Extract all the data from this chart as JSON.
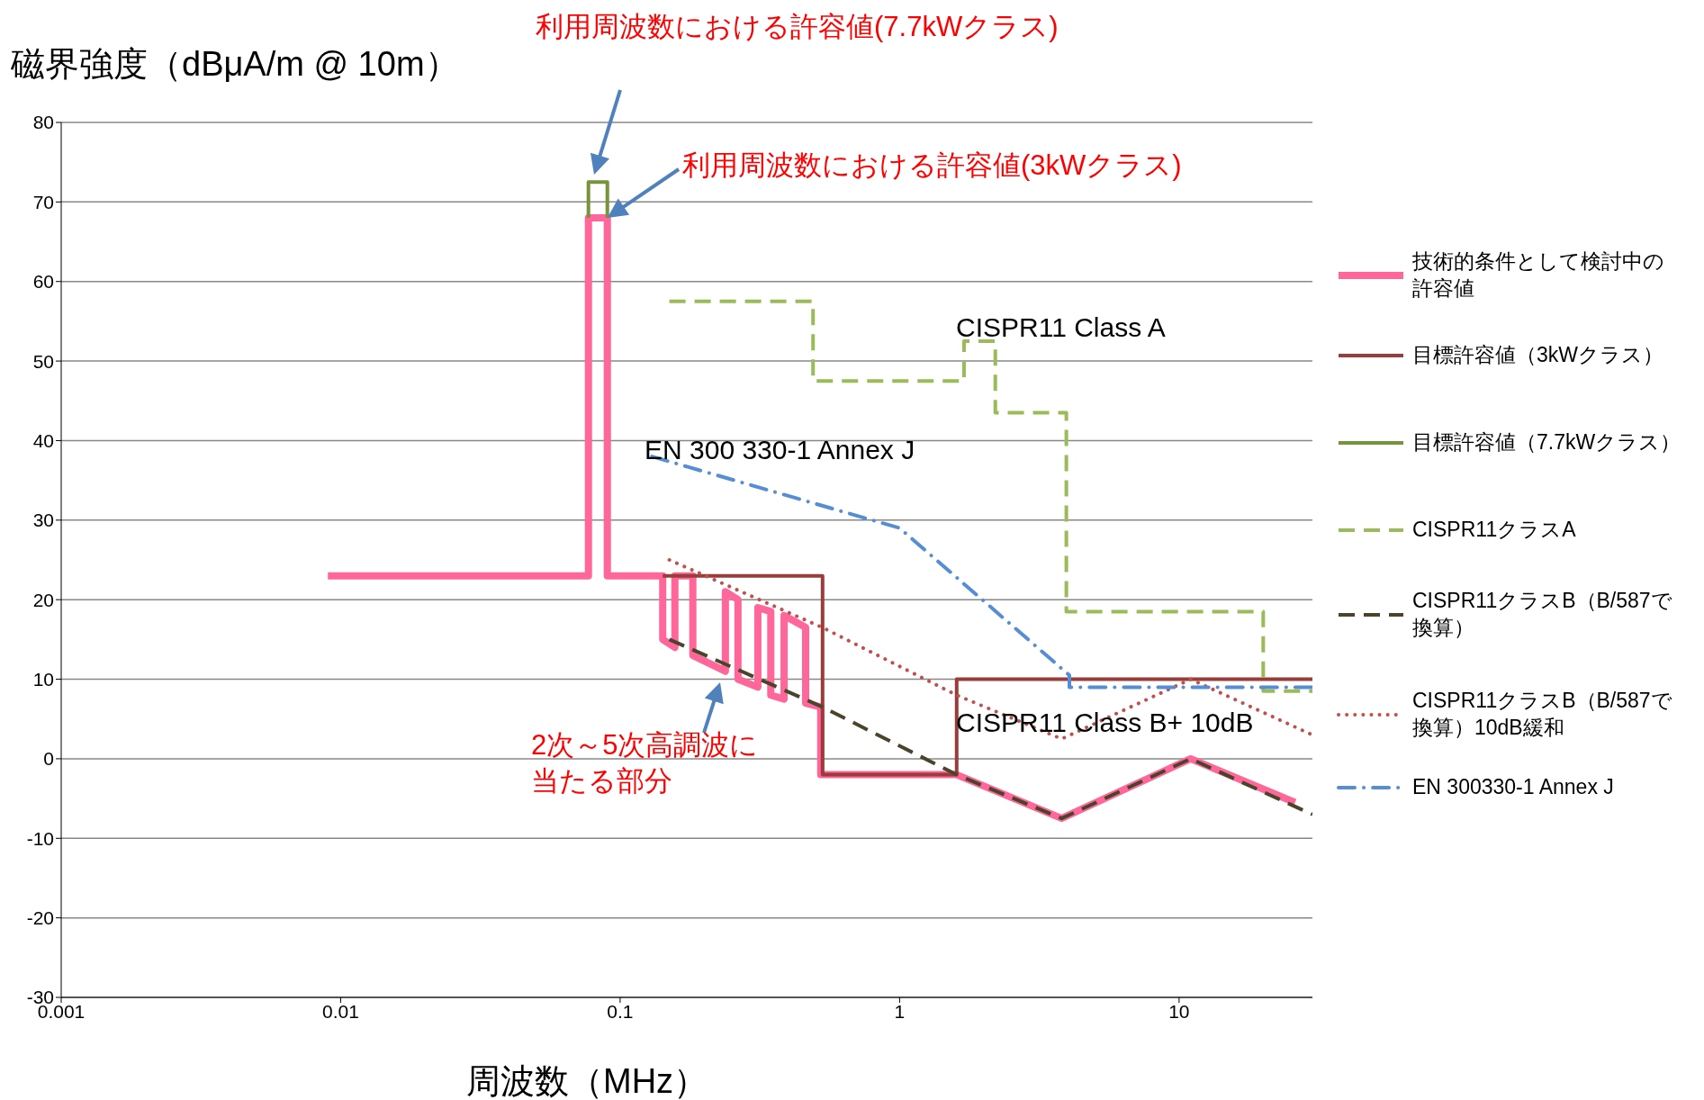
{
  "chart_data": {
    "type": "line",
    "xlabel": "周波数（MHz）",
    "ylabel": "磁界強度（dBμA/m @ 10m）",
    "log": "x",
    "grid": "y",
    "legend": "right",
    "xlim": [
      0.001,
      30
    ],
    "xticks": [
      0.001,
      0.01,
      0.1,
      1,
      10
    ],
    "ylim": [
      -30,
      80
    ],
    "yticks": [
      -30,
      -20,
      -10,
      0,
      10,
      20,
      30,
      40,
      50,
      60,
      70,
      80
    ],
    "series": [
      {
        "name": "技術的条件として検討中の許容値",
        "color": "#ff6699",
        "line_style": "solid",
        "x": [
          0.009,
          0.077,
          0.077,
          0.09,
          0.09,
          0.142,
          0.142,
          0.157,
          0.157,
          0.182,
          0.182,
          0.238,
          0.238,
          0.264,
          0.264,
          0.311,
          0.311,
          0.346,
          0.346,
          0.386,
          0.386,
          0.461,
          0.461,
          0.522,
          0.522,
          1.6,
          3.8,
          11,
          26
        ],
        "values": [
          23,
          23,
          68,
          68,
          23,
          23,
          15,
          14,
          23,
          23,
          13,
          11,
          21,
          20,
          10,
          9,
          19,
          18.5,
          8,
          7.5,
          18,
          16.5,
          7,
          6.5,
          -2,
          -2,
          -7.5,
          0,
          -5.5
        ]
      },
      {
        "name": "目標許容値（3kWクラス）",
        "color": "#993d3b",
        "line_style": "solid",
        "x": [
          0.142,
          0.53,
          0.53,
          1.6,
          1.6,
          30
        ],
        "values": [
          23,
          23,
          -2,
          -2,
          10,
          10
        ]
      },
      {
        "name": "目標許容値（7.7kWクラス）",
        "color": "#77933c",
        "line_style": "solid",
        "x": [
          0.077,
          0.077,
          0.09,
          0.09
        ],
        "values": [
          68,
          72.5,
          72.5,
          68
        ]
      },
      {
        "name": "CISPR11クラスA",
        "color": "#9bbb59",
        "line_style": "dashed",
        "x": [
          0.15,
          0.49,
          0.49,
          1.7,
          1.7,
          2.2,
          2.2,
          3.95,
          3.95,
          20,
          20,
          30
        ],
        "values": [
          57.5,
          57.5,
          47.5,
          47.5,
          52.5,
          52.5,
          43.5,
          43.5,
          18.5,
          18.5,
          8.5,
          8.5
        ]
      },
      {
        "name": "CISPR11クラスB（B/587で換算）",
        "color": "#4a452a",
        "line_style": "dashed",
        "x": [
          0.15,
          0.53,
          1.6,
          3.8,
          11,
          30
        ],
        "values": [
          15,
          6.5,
          -2,
          -7.5,
          0,
          -7
        ]
      },
      {
        "name": "CISPR11クラスB（B/587で換算）10dB緩和",
        "color": "#c0504d",
        "line_style": "dotted",
        "x": [
          0.15,
          0.53,
          1.6,
          3.8,
          11,
          30
        ],
        "values": [
          25,
          16.5,
          8,
          2.5,
          10,
          3
        ]
      },
      {
        "name": "EN 300330-1 Annex J",
        "color": "#558ed5",
        "line_style": "dashdot",
        "x": [
          0.13,
          1,
          4.05,
          4.05,
          30
        ],
        "values": [
          38,
          29,
          10.5,
          9,
          9
        ]
      }
    ],
    "annotations": [
      "利用周波数における許容値(7.7kWクラス)",
      {
        "text": "利用周波数における許容値(3kWクラス)",
        "x": 0.09,
        "y": 68
      },
      "2次～5次高調波に当たる部分",
      "CISPR11 Class A",
      "EN 300 330-1 Annex J",
      "CISPR11 Class B+ 10dB"
    ]
  }
}
